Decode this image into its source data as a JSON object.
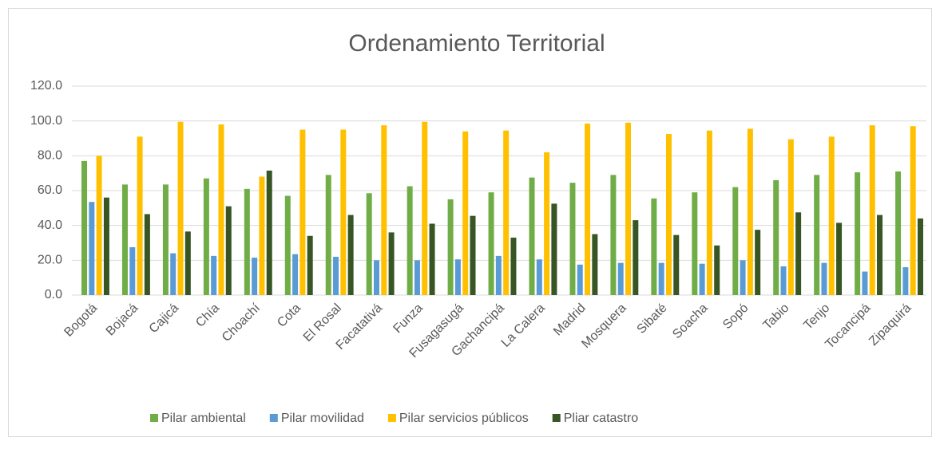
{
  "chart_data": {
    "type": "bar",
    "title": "Ordenamiento Territorial",
    "categories": [
      "Bogotá",
      "Bojacá",
      "Cajicá",
      "Chía",
      "Choachí",
      "Cota",
      "El Rosal",
      "Facatativá",
      "Funza",
      "Fusagasugá",
      "Gachancipá",
      "La Calera",
      "Madrid",
      "Mosquera",
      "Sibaté",
      "Soacha",
      "Sopó",
      "Tabio",
      "Tenjo",
      "Tocancipá",
      "Zipaquirá"
    ],
    "series": [
      {
        "name": "Pilar ambiental",
        "color": "#70ad47",
        "values": [
          77,
          63.5,
          63.5,
          67,
          61,
          57,
          69,
          58.5,
          62.5,
          55,
          59,
          67.5,
          64.5,
          69,
          55.5,
          59,
          62,
          66,
          69,
          70.5,
          71
        ]
      },
      {
        "name": "Pilar movilidad",
        "color": "#5b9bd5",
        "values": [
          53.5,
          27.5,
          24,
          22.5,
          21.5,
          23.5,
          22,
          20,
          20,
          20.5,
          22.5,
          20.5,
          17.5,
          18.5,
          18.5,
          18,
          20,
          16.5,
          18.5,
          13.5,
          16
        ]
      },
      {
        "name": "Pilar servicios públicos",
        "color": "#ffc000",
        "values": [
          80,
          91,
          99.5,
          98,
          68,
          95,
          95,
          97.5,
          99.5,
          94,
          94.5,
          82,
          98.5,
          99,
          92.5,
          94.5,
          95.5,
          89.5,
          91,
          97.5,
          97
        ]
      },
      {
        "name": "Pliar catastro",
        "color": "#375623",
        "values": [
          56,
          46.5,
          36.5,
          51,
          71.5,
          34,
          46,
          36,
          41,
          45.5,
          33,
          52.5,
          35,
          43,
          34.5,
          28.5,
          37.5,
          47.5,
          41.5,
          46,
          44
        ]
      }
    ],
    "ylim": [
      0,
      120
    ],
    "yticks": [
      {
        "value": 0,
        "label": "0.0"
      },
      {
        "value": 20,
        "label": "20.0"
      },
      {
        "value": 40,
        "label": "40.0"
      },
      {
        "value": 60,
        "label": "60.0"
      },
      {
        "value": 80,
        "label": "80.0"
      },
      {
        "value": 100,
        "label": "100.0"
      },
      {
        "value": 120,
        "label": "120.0"
      }
    ],
    "grid": true,
    "legend": "bottom"
  }
}
